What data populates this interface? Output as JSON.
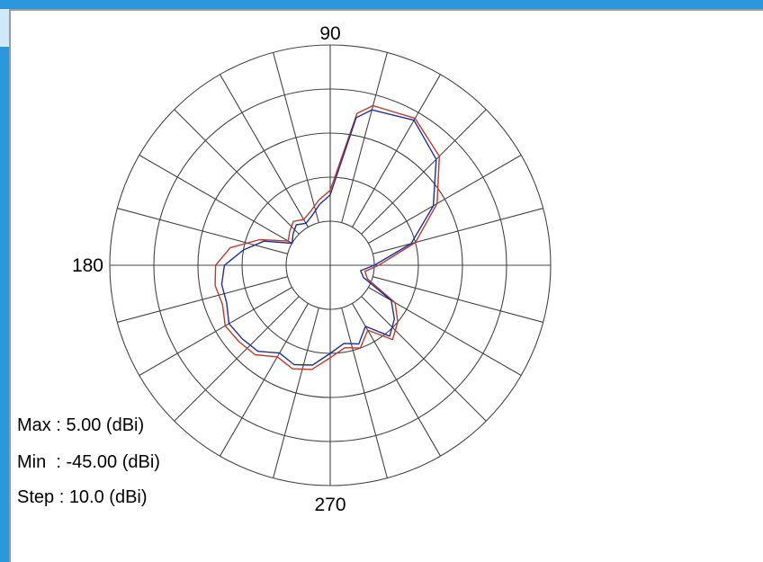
{
  "chart_data": {
    "type": "polar",
    "title": "",
    "angle_labels": [
      {
        "angle": 90,
        "text": "90"
      },
      {
        "angle": 180,
        "text": "180"
      },
      {
        "angle": 270,
        "text": "270"
      }
    ],
    "angle_unit": "deg",
    "radial_scale": {
      "max": 5.0,
      "min": -45.0,
      "step": 10.0,
      "unit": "dBi"
    },
    "rings": [
      -35,
      -25,
      -15,
      -5,
      5
    ],
    "spokes_every_deg": 15,
    "grid": true,
    "series": [
      {
        "color": "#c0392b",
        "angles": [
          0,
          15,
          30,
          45,
          60,
          75,
          80,
          90,
          100,
          110,
          120,
          130,
          140,
          150,
          160,
          170,
          180,
          190,
          200,
          210,
          220,
          230,
          240,
          250,
          260,
          270,
          280,
          290,
          300,
          310,
          320,
          330,
          340,
          350
        ],
        "values": [
          -34,
          -25,
          -17,
          -10,
          -6.5,
          -7.5,
          -10,
          -28,
          -30,
          -32,
          -33,
          -32,
          -33,
          -34,
          -28,
          -22,
          -19,
          -18.5,
          -19,
          -17.5,
          -18,
          -18.5,
          -21,
          -20,
          -21,
          -24,
          -26,
          -25,
          -28,
          -23,
          -25,
          -28,
          -36,
          -37
        ]
      },
      {
        "color": "#1f2f9c",
        "angles": [
          0,
          15,
          30,
          45,
          60,
          75,
          80,
          90,
          100,
          110,
          120,
          130,
          140,
          150,
          160,
          170,
          180,
          190,
          200,
          210,
          220,
          230,
          240,
          250,
          260,
          270,
          280,
          290,
          300,
          310,
          320,
          330,
          340,
          350
        ],
        "values": [
          -35,
          -26,
          -18,
          -11,
          -7,
          -8.5,
          -11,
          -29,
          -31,
          -33,
          -34,
          -33,
          -34,
          -35,
          -29,
          -25,
          -21,
          -20,
          -20,
          -18.5,
          -19,
          -19.5,
          -22,
          -21,
          -22,
          -25,
          -27,
          -26,
          -29,
          -24,
          -26,
          -29,
          -37,
          -38
        ]
      }
    ]
  },
  "info": {
    "max": "Max : 5.00 (dBi)",
    "min": "Min  : -45.00 (dBi)",
    "step": "Step : 10.0 (dBi)"
  },
  "colors": {
    "frame": "#2b97dd",
    "grid": "#444444",
    "background": "#ffffff"
  }
}
